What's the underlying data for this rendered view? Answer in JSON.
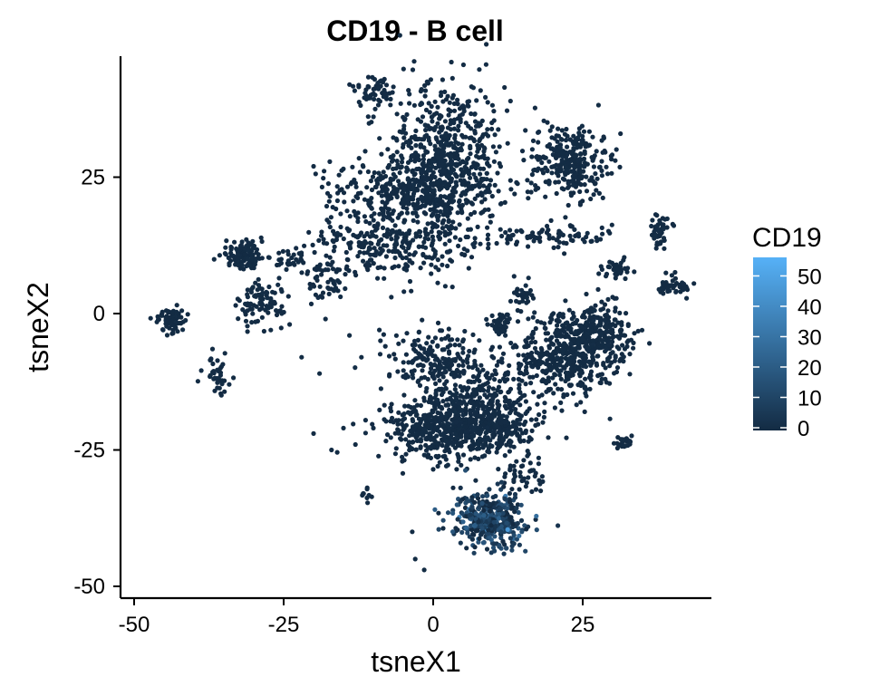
{
  "chart_data": {
    "type": "scatter",
    "title": "CD19 - B cell",
    "xlabel": "tsneX1",
    "ylabel": "tsneX2",
    "xlim": [
      -52,
      46
    ],
    "ylim": [
      -52,
      43
    ],
    "x_ticks": [
      -50,
      -25,
      0,
      25
    ],
    "y_ticks": [
      -50,
      -25,
      0,
      25
    ],
    "grid": false,
    "color_scale": {
      "title": "CD19",
      "low_color": "#132B43",
      "high_color": "#56B1F7",
      "range": [
        0,
        57
      ],
      "ticks": [
        0,
        10,
        20,
        30,
        40,
        50
      ]
    },
    "clusters": [
      {
        "cx": 2,
        "cy": 27,
        "sx": 5,
        "sy": 8,
        "n": 700,
        "expr": 0.3
      },
      {
        "cx": -5,
        "cy": 23,
        "sx": 6,
        "sy": 3,
        "n": 250,
        "expr": 0.3
      },
      {
        "cx": -8,
        "cy": 13,
        "sx": 6,
        "sy": 3,
        "n": 250,
        "expr": 0.3
      },
      {
        "cx": -10,
        "cy": 41,
        "sx": 2,
        "sy": 1.5,
        "n": 50,
        "expr": 0.3
      },
      {
        "cx": -18,
        "cy": 7,
        "sx": 2,
        "sy": 2,
        "n": 55,
        "expr": 0.3
      },
      {
        "cx": 23,
        "cy": 28,
        "sx": 3.5,
        "sy": 3.5,
        "n": 300,
        "expr": 0.3
      },
      {
        "cx": 20,
        "cy": 14,
        "sx": 5,
        "sy": 1.2,
        "n": 80,
        "expr": 0.3
      },
      {
        "cx": 38,
        "cy": 15,
        "sx": 1,
        "sy": 1.5,
        "n": 50,
        "expr": 0.3
      },
      {
        "cx": 31,
        "cy": 8,
        "sx": 1.5,
        "sy": 0.8,
        "n": 40,
        "expr": 0.3
      },
      {
        "cx": 40,
        "cy": 5,
        "sx": 1.5,
        "sy": 1,
        "n": 45,
        "expr": 0.3
      },
      {
        "cx": -31.5,
        "cy": 10.5,
        "sx": 1.5,
        "sy": 1.2,
        "n": 120,
        "expr": 0.3
      },
      {
        "cx": -24,
        "cy": 9.5,
        "sx": 1.5,
        "sy": 1,
        "n": 30,
        "expr": 0.3
      },
      {
        "cx": -29,
        "cy": 2,
        "sx": 2,
        "sy": 2,
        "n": 90,
        "expr": 0.3
      },
      {
        "cx": -44,
        "cy": -1,
        "sx": 1.3,
        "sy": 1,
        "n": 80,
        "expr": 0.3
      },
      {
        "cx": -36,
        "cy": -11,
        "sx": 1,
        "sy": 1.5,
        "n": 40,
        "expr": 0.3
      },
      {
        "cx": 1,
        "cy": -9,
        "sx": 4,
        "sy": 3,
        "n": 200,
        "expr": 0.3
      },
      {
        "cx": 2,
        "cy": -21,
        "sx": 5,
        "sy": 3,
        "n": 450,
        "expr": 0.3
      },
      {
        "cx": 10,
        "cy": -21,
        "sx": 4,
        "sy": 2,
        "n": 200,
        "expr": 0.3
      },
      {
        "cx": 22,
        "cy": -8,
        "sx": 5,
        "sy": 3.5,
        "n": 450,
        "expr": 0.3
      },
      {
        "cx": 27,
        "cy": -3,
        "sx": 3,
        "sy": 2.5,
        "n": 200,
        "expr": 0.3
      },
      {
        "cx": 8,
        "cy": -15,
        "sx": 4,
        "sy": 3,
        "n": 180,
        "expr": 0.3
      },
      {
        "cx": 11,
        "cy": -2,
        "sx": 1,
        "sy": 1,
        "n": 40,
        "expr": 0.3
      },
      {
        "cx": 15,
        "cy": 3,
        "sx": 1,
        "sy": 1.5,
        "n": 30,
        "expr": 0.3
      },
      {
        "cx": 32,
        "cy": -23.5,
        "sx": 0.8,
        "sy": 0.6,
        "n": 25,
        "expr": 0.3
      },
      {
        "cx": 15,
        "cy": -29,
        "sx": 2,
        "sy": 2,
        "n": 45,
        "expr": 0.3
      },
      {
        "cx": 9.5,
        "cy": -37.5,
        "sx": 3,
        "sy": 2.5,
        "n": 400,
        "expr": 6.0
      },
      {
        "cx": -11,
        "cy": -33,
        "sx": 0.5,
        "sy": 1,
        "n": 10,
        "expr": 0.3
      }
    ],
    "scatter_points": [
      [
        -3,
        -45
      ],
      [
        -1.5,
        -47
      ],
      [
        -3.5,
        -40
      ],
      [
        -10,
        -21
      ],
      [
        -13,
        -24
      ],
      [
        -20,
        -22
      ],
      [
        -15,
        -21
      ],
      [
        -5,
        -5
      ],
      [
        -8,
        -6
      ],
      [
        -14,
        -4
      ],
      [
        -22,
        -8
      ],
      [
        -19,
        -11
      ],
      [
        -12,
        -8
      ],
      [
        -9,
        -3
      ],
      [
        -17,
        -25
      ],
      [
        -24,
        -2
      ],
      [
        -13,
        18
      ],
      [
        -7,
        3
      ],
      [
        -18,
        -1
      ],
      [
        -20,
        27
      ]
    ]
  }
}
